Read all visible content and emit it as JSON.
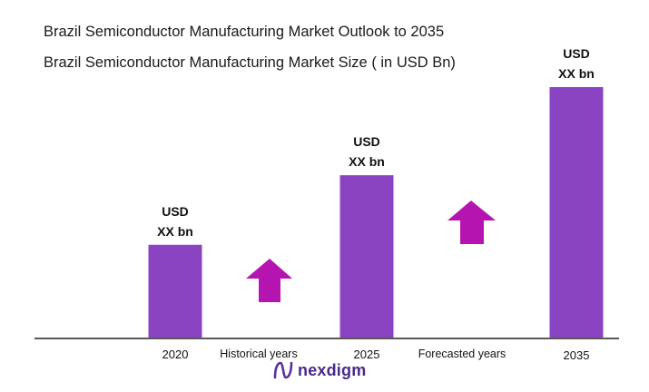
{
  "header": {
    "title": "Brazil Semiconductor Manufacturing Market Outlook to 2035",
    "subtitle": "Brazil Semiconductor Manufacturing Market Size  ( in USD Bn)"
  },
  "chart_data": {
    "type": "bar",
    "title": "Brazil Semiconductor Manufacturing Market Outlook to 2035",
    "subtitle": "Brazil Semiconductor Manufacturing Market Size  ( in USD Bn)",
    "categories": [
      "2020",
      "2025",
      "2035"
    ],
    "values": [
      1.0,
      1.75,
      2.7
    ],
    "value_labels": [
      {
        "line1": "USD",
        "line2": "XX bn"
      },
      {
        "line1": "USD",
        "line2": "XX bn"
      },
      {
        "line1": "USD",
        "line2": "XX bn"
      }
    ],
    "period_labels": [
      "Historical years",
      "Forecasted years"
    ],
    "ylim": [
      0,
      2.7
    ],
    "bar_color": "#8a44c2",
    "arrow_color": "#b514b0",
    "grid": false,
    "legend": "none"
  },
  "logo": {
    "text": "nexdigm",
    "icon": "nexdigm-logo-icon",
    "color": "#4a2a8a"
  }
}
